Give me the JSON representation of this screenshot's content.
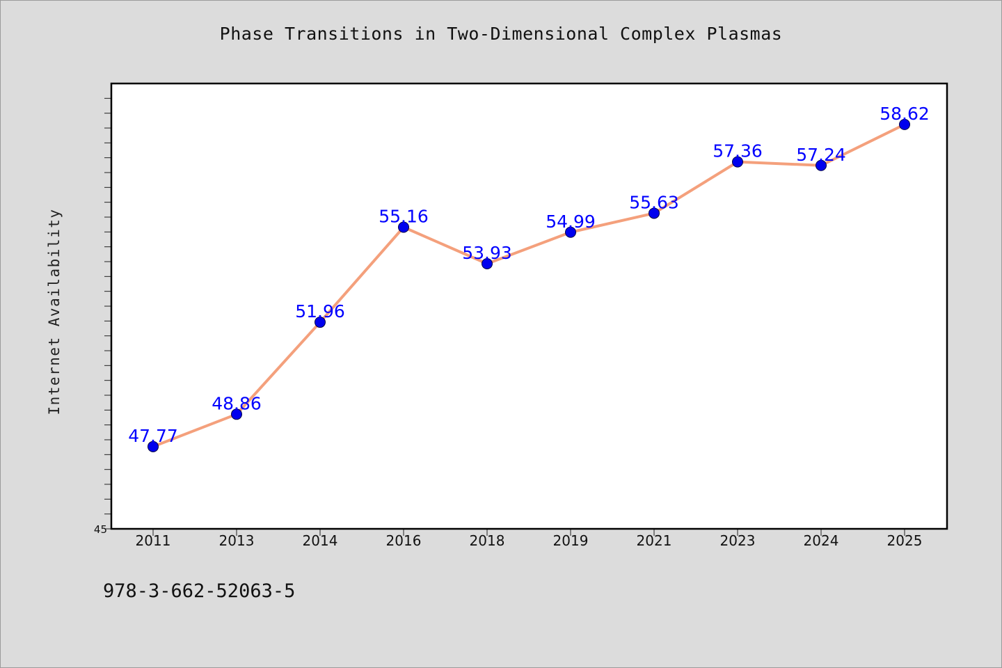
{
  "chart_data": {
    "type": "line",
    "title": "Phase Transitions in Two-Dimensional Complex Plasmas",
    "xlabel": "",
    "ylabel": "Internet Availability",
    "categories": [
      "2011",
      "2013",
      "2014",
      "2016",
      "2018",
      "2019",
      "2021",
      "2023",
      "2024",
      "2025"
    ],
    "series": [
      {
        "values": [
          47.77,
          48.86,
          51.96,
          55.16,
          53.93,
          54.99,
          55.63,
          57.36,
          57.24,
          58.62
        ]
      }
    ],
    "data_labels": [
      "47.77",
      "48.86",
      "51.96",
      "55.16",
      "53.93",
      "54.99",
      "55.63",
      "57.36",
      "57.24",
      "58.62"
    ],
    "ylim": [
      45,
      60
    ],
    "yticks_labeled": [
      "45"
    ],
    "grid": false,
    "legend": "none",
    "colors": {
      "line": "#f4a07c",
      "marker": "#0000ee",
      "label": "#0000ff"
    }
  },
  "footer": {
    "code": "978-3-662-52063-5"
  }
}
